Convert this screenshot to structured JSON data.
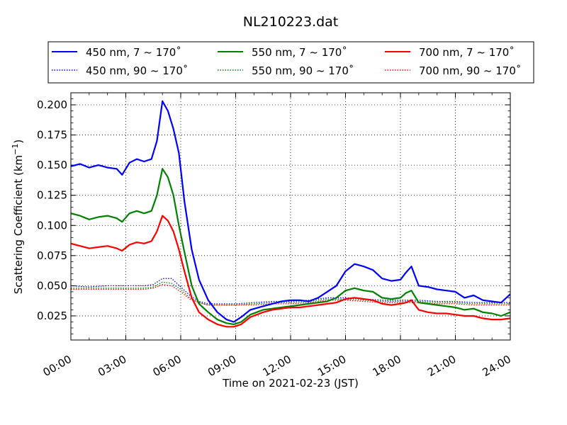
{
  "chart_data": {
    "type": "line",
    "title": "NL210223.dat",
    "xlabel": "Time on 2021-02-23 (JST)",
    "ylabel": "Scattering Coefficient (km",
    "ylabel_exponent": "−1",
    "ylabel_close": ")",
    "xlim": [
      0,
      24
    ],
    "ylim": [
      0.005,
      0.21
    ],
    "x_tick_values": [
      0,
      3,
      6,
      9,
      12,
      15,
      18,
      21,
      24
    ],
    "x_tick_labels": [
      "00:00",
      "03:00",
      "06:00",
      "09:00",
      "12:00",
      "15:00",
      "18:00",
      "21:00",
      "24:00"
    ],
    "y_tick_values": [
      0.025,
      0.05,
      0.075,
      0.1,
      0.125,
      0.15,
      0.175,
      0.2
    ],
    "y_tick_labels": [
      "0.025",
      "0.050",
      "0.075",
      "0.100",
      "0.125",
      "0.150",
      "0.175",
      "0.200"
    ],
    "grid": true,
    "legend_placement": "top, above plot, 3 columns",
    "series": [
      {
        "name": "450 nm, 7 ~ 170˚",
        "color": "#0000ff",
        "style": "solid",
        "x": [
          0,
          0.5,
          1,
          1.5,
          2,
          2.5,
          2.8,
          3.2,
          3.6,
          4,
          4.4,
          4.7,
          5,
          5.3,
          5.6,
          5.9,
          6.2,
          6.6,
          7,
          7.5,
          8,
          8.5,
          8.9,
          9.3,
          9.8,
          10.5,
          11,
          11.5,
          12,
          12.5,
          13,
          13.5,
          14,
          14.5,
          15,
          15.5,
          16,
          16.5,
          17,
          17.5,
          18,
          18.3,
          18.6,
          19,
          19.5,
          20,
          20.5,
          21,
          21.5,
          22,
          22.5,
          23,
          23.5,
          24
        ],
        "y": [
          0.149,
          0.151,
          0.148,
          0.15,
          0.148,
          0.147,
          0.142,
          0.152,
          0.155,
          0.153,
          0.155,
          0.17,
          0.203,
          0.195,
          0.18,
          0.16,
          0.12,
          0.08,
          0.055,
          0.038,
          0.028,
          0.022,
          0.02,
          0.024,
          0.03,
          0.033,
          0.035,
          0.037,
          0.038,
          0.038,
          0.037,
          0.04,
          0.045,
          0.05,
          0.062,
          0.068,
          0.066,
          0.063,
          0.056,
          0.054,
          0.055,
          0.061,
          0.066,
          0.05,
          0.049,
          0.047,
          0.046,
          0.045,
          0.04,
          0.042,
          0.038,
          0.037,
          0.036,
          0.043
        ]
      },
      {
        "name": "450 nm, 90 ~ 170˚",
        "color": "#0000ff",
        "style": "dotted",
        "x": [
          0,
          1,
          2,
          3,
          4,
          4.5,
          5,
          5.5,
          6,
          6.5,
          7,
          7.5,
          8,
          9,
          10,
          11,
          12,
          13,
          14,
          15,
          16,
          17,
          18,
          19,
          20,
          21,
          22,
          23,
          24
        ],
        "y": [
          0.05,
          0.049,
          0.05,
          0.05,
          0.05,
          0.051,
          0.056,
          0.056,
          0.049,
          0.042,
          0.037,
          0.035,
          0.035,
          0.035,
          0.036,
          0.037,
          0.037,
          0.038,
          0.04,
          0.04,
          0.039,
          0.038,
          0.038,
          0.038,
          0.037,
          0.037,
          0.036,
          0.036,
          0.036
        ]
      },
      {
        "name": "550 nm, 7 ~ 170˚",
        "color": "#008000",
        "style": "solid",
        "x": [
          0,
          0.5,
          1,
          1.5,
          2,
          2.5,
          2.8,
          3.2,
          3.6,
          4,
          4.4,
          4.7,
          5,
          5.3,
          5.6,
          5.9,
          6.2,
          6.6,
          7,
          7.5,
          8,
          8.5,
          8.9,
          9.3,
          9.8,
          10.5,
          11,
          11.5,
          12,
          12.5,
          13,
          13.5,
          14,
          14.5,
          15,
          15.5,
          16,
          16.5,
          17,
          17.5,
          18,
          18.3,
          18.6,
          19,
          19.5,
          20,
          20.5,
          21,
          21.5,
          22,
          22.5,
          23,
          23.5,
          24
        ],
        "y": [
          0.11,
          0.108,
          0.105,
          0.107,
          0.108,
          0.106,
          0.103,
          0.11,
          0.112,
          0.11,
          0.112,
          0.125,
          0.147,
          0.14,
          0.125,
          0.1,
          0.078,
          0.05,
          0.035,
          0.028,
          0.022,
          0.019,
          0.018,
          0.02,
          0.026,
          0.03,
          0.031,
          0.032,
          0.033,
          0.034,
          0.035,
          0.036,
          0.037,
          0.04,
          0.046,
          0.048,
          0.046,
          0.045,
          0.04,
          0.039,
          0.04,
          0.044,
          0.046,
          0.036,
          0.035,
          0.034,
          0.033,
          0.032,
          0.03,
          0.031,
          0.028,
          0.027,
          0.025,
          0.028
        ]
      },
      {
        "name": "550 nm, 90 ~ 170˚",
        "color": "#008000",
        "style": "dotted",
        "x": [
          0,
          1,
          2,
          3,
          4,
          4.5,
          5,
          5.5,
          6,
          6.5,
          7,
          7.5,
          8,
          9,
          10,
          11,
          12,
          13,
          14,
          15,
          16,
          17,
          18,
          19,
          20,
          21,
          22,
          23,
          24
        ],
        "y": [
          0.048,
          0.048,
          0.048,
          0.048,
          0.048,
          0.049,
          0.053,
          0.052,
          0.047,
          0.04,
          0.036,
          0.034,
          0.034,
          0.034,
          0.035,
          0.036,
          0.036,
          0.037,
          0.039,
          0.039,
          0.038,
          0.037,
          0.037,
          0.037,
          0.036,
          0.036,
          0.035,
          0.035,
          0.035
        ]
      },
      {
        "name": "700 nm, 7 ~ 170˚",
        "color": "#ff0000",
        "style": "solid",
        "x": [
          0,
          0.5,
          1,
          1.5,
          2,
          2.5,
          2.8,
          3.2,
          3.6,
          4,
          4.4,
          4.7,
          5,
          5.3,
          5.6,
          5.9,
          6.2,
          6.6,
          7,
          7.5,
          8,
          8.5,
          8.9,
          9.3,
          9.8,
          10.5,
          11,
          11.5,
          12,
          12.5,
          13,
          13.5,
          14,
          14.5,
          15,
          15.5,
          16,
          16.5,
          17,
          17.5,
          18,
          18.3,
          18.6,
          19,
          19.5,
          20,
          20.5,
          21,
          21.5,
          22,
          22.5,
          23,
          23.5,
          24
        ],
        "y": [
          0.085,
          0.083,
          0.081,
          0.082,
          0.083,
          0.081,
          0.079,
          0.084,
          0.086,
          0.085,
          0.087,
          0.095,
          0.108,
          0.104,
          0.095,
          0.08,
          0.062,
          0.04,
          0.028,
          0.022,
          0.018,
          0.016,
          0.016,
          0.018,
          0.024,
          0.028,
          0.03,
          0.031,
          0.032,
          0.032,
          0.033,
          0.034,
          0.035,
          0.036,
          0.039,
          0.04,
          0.039,
          0.038,
          0.035,
          0.034,
          0.035,
          0.036,
          0.038,
          0.03,
          0.028,
          0.027,
          0.027,
          0.026,
          0.025,
          0.025,
          0.023,
          0.022,
          0.022,
          0.023
        ]
      },
      {
        "name": "700 nm, 90 ~ 170˚",
        "color": "#ff0000",
        "style": "dotted",
        "x": [
          0,
          1,
          2,
          3,
          4,
          4.5,
          5,
          5.5,
          6,
          6.5,
          7,
          7.5,
          8,
          9,
          10,
          11,
          12,
          13,
          14,
          15,
          16,
          17,
          18,
          19,
          20,
          21,
          22,
          23,
          24
        ],
        "y": [
          0.047,
          0.047,
          0.047,
          0.047,
          0.047,
          0.048,
          0.051,
          0.05,
          0.045,
          0.039,
          0.036,
          0.034,
          0.034,
          0.034,
          0.034,
          0.035,
          0.035,
          0.036,
          0.038,
          0.038,
          0.037,
          0.036,
          0.036,
          0.036,
          0.035,
          0.035,
          0.034,
          0.034,
          0.034
        ]
      }
    ]
  }
}
